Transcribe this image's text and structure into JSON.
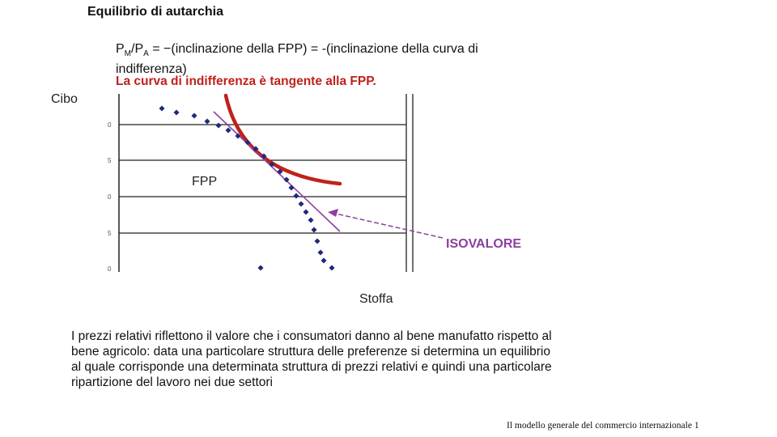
{
  "title": "Equilibrio di autarchia",
  "formula": {
    "p": "P",
    "sub_m": "M",
    "slash": "/P",
    "sub_a": "A",
    "rest": " = −(inclinazione della FPP) = -(inclinazione della curva di indifferenza)"
  },
  "tangent_note": "La curva di indifferenza è tangente alla FPP.",
  "diagram": {
    "y_axis_label": "Cibo",
    "x_axis_label": "Stoffa",
    "fpp_label": "FPP",
    "isovalore_label": "ISOVALORE",
    "y_tick_labels": [
      "0",
      "5",
      "0",
      "5",
      "0"
    ],
    "colors": {
      "indifference_curve": "#c0211b",
      "fpp_points": "#1f2a7a",
      "isovalore": "#8b3fa0",
      "arrow": "#8b3fa0",
      "gridlines": "#222222"
    }
  },
  "paragraph": "I prezzi relativi riflettono il valore che i consumatori danno al bene manufatto rispetto al bene agricolo: data una particolare struttura delle preferenze si determina un equilibrio al quale corrisponde una determinata struttura di prezzi relativi e quindi una particolare ripartizione del lavoro nei due settori",
  "footer": "Il modello generale del commercio internazionale 1"
}
